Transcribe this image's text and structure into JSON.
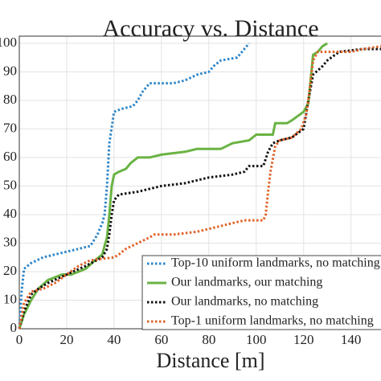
{
  "chart_data": {
    "type": "line",
    "title": "Accuracy vs. Distance",
    "xlabel": "Distance [m]",
    "xlim": [
      0,
      153
    ],
    "ylim": [
      0,
      102.5
    ],
    "xticks": [
      0,
      20,
      40,
      60,
      80,
      100,
      120,
      140
    ],
    "yticks": [
      0,
      10,
      20,
      30,
      40,
      50,
      60,
      70,
      80,
      90,
      100
    ],
    "grid": true,
    "legend": "lower right",
    "series": [
      {
        "name": "Top-10 uniform landmarks, no matching",
        "color": "#2e86c9",
        "style": "dotted",
        "x": [
          0,
          1,
          2,
          5,
          10,
          15,
          20,
          25,
          30,
          33,
          35,
          36,
          37,
          38,
          40,
          43,
          48,
          50,
          52,
          55,
          65,
          70,
          75,
          80,
          82,
          85,
          92,
          94,
          97
        ],
        "values": [
          0,
          13,
          21,
          23,
          25,
          26,
          27,
          28,
          29,
          33,
          37,
          40,
          50,
          65,
          76,
          77,
          78,
          80,
          83,
          86,
          86,
          87,
          89,
          90,
          92,
          94,
          95,
          97,
          100
        ]
      },
      {
        "name": "Our landmarks, our matching",
        "color": "#6ab344",
        "style": "solid",
        "x": [
          0,
          2,
          5,
          8,
          12,
          18,
          22,
          28,
          32,
          35,
          36,
          37,
          38,
          39,
          40,
          42,
          45,
          47,
          50,
          55,
          60,
          70,
          75,
          85,
          90,
          97,
          100,
          107,
          108,
          113,
          115,
          120,
          122,
          124,
          126,
          128,
          130
        ],
        "values": [
          0,
          5,
          10,
          14,
          17,
          19,
          19,
          21,
          24,
          26,
          29,
          32,
          40,
          50,
          54,
          55,
          56,
          58,
          60,
          60,
          61,
          62,
          63,
          63,
          65,
          66,
          68,
          68,
          72,
          72,
          73,
          76,
          79,
          96,
          97,
          99,
          100
        ]
      },
      {
        "name": "Our landmarks, no matching",
        "color": "#111111",
        "style": "dotted",
        "x": [
          0,
          2,
          5,
          8,
          12,
          20,
          28,
          35,
          37,
          38,
          39,
          40,
          42,
          50,
          60,
          70,
          80,
          90,
          95,
          97,
          103,
          105,
          107,
          110,
          115,
          120,
          121,
          122,
          124,
          128,
          130,
          135,
          145,
          153
        ],
        "values": [
          0,
          6,
          12,
          14,
          16,
          19,
          22,
          25,
          28,
          33,
          40,
          45,
          47,
          48,
          50,
          51,
          53,
          54,
          55,
          57,
          57,
          62,
          65,
          66,
          67,
          70,
          75,
          80,
          89,
          92,
          94,
          97,
          98,
          98
        ]
      },
      {
        "name": "Top-1 uniform landmarks, no matching",
        "color": "#e0632a",
        "style": "dotted",
        "x": [
          0,
          2,
          5,
          10,
          15,
          20,
          25,
          30,
          40,
          42,
          45,
          50,
          55,
          57,
          65,
          75,
          85,
          90,
          95,
          103,
          104,
          105,
          106,
          108,
          110,
          115,
          119,
          121,
          122,
          124,
          126,
          130,
          140,
          145,
          153
        ],
        "values": [
          0,
          9,
          13,
          14,
          16,
          19,
          22,
          24,
          25,
          26,
          28,
          30,
          32,
          33,
          33,
          34,
          36,
          37,
          38,
          38,
          40,
          48,
          55,
          64,
          66,
          67,
          70,
          75,
          80,
          94,
          97,
          97,
          97,
          98,
          99
        ]
      }
    ]
  }
}
